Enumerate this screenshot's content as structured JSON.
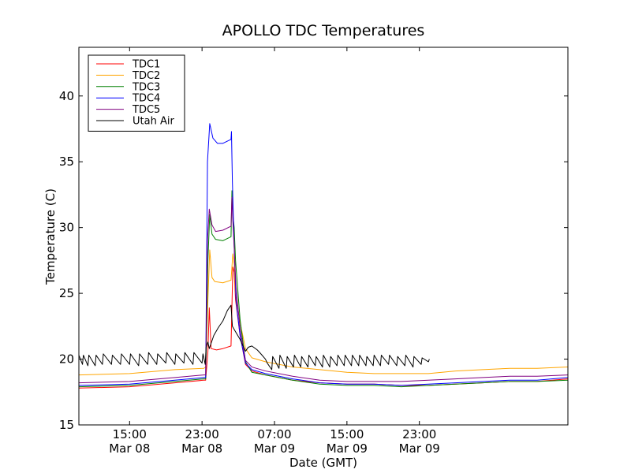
{
  "chart_data": {
    "type": "line",
    "title": "APOLLO TDC Temperatures",
    "xlabel": "Date (GMT)",
    "ylabel": "Temperature (C)",
    "x_unit": "hours since Mar 08 00:00 GMT",
    "xlim": [
      9.4,
      63.4
    ],
    "ylim": [
      15,
      43.7
    ],
    "yticks": [
      15,
      20,
      25,
      30,
      35,
      40
    ],
    "xticks": [
      {
        "x": 15,
        "time": "15:00",
        "date": "Mar 08"
      },
      {
        "x": 23,
        "time": "23:00",
        "date": "Mar 08"
      },
      {
        "x": 31,
        "time": "07:00",
        "date": "Mar 09"
      },
      {
        "x": 39,
        "time": "15:00",
        "date": "Mar 09"
      },
      {
        "x": 47,
        "time": "23:00",
        "date": "Mar 09"
      }
    ],
    "legend_position": "top-left",
    "series": [
      {
        "name": "TDC1",
        "color": "#ff0000",
        "x": [
          9.4,
          15,
          20,
          23.2,
          23.4,
          23.65,
          23.8,
          24,
          24.6,
          25.3,
          26.2,
          26.4,
          26.55,
          26.7,
          27.2,
          27.8,
          28.5,
          30,
          33,
          36,
          39,
          42,
          45,
          48,
          51,
          54,
          57,
          60,
          63.4
        ],
        "y": [
          17.8,
          17.9,
          18.2,
          18.4,
          18.4,
          20.6,
          23.9,
          20.8,
          20.7,
          20.8,
          21.0,
          27.0,
          26.6,
          24.5,
          21.8,
          19.6,
          19.1,
          18.8,
          18.4,
          18.2,
          18.1,
          18.1,
          18.0,
          18.0,
          18.1,
          18.2,
          18.3,
          18.3,
          18.5
        ]
      },
      {
        "name": "TDC2",
        "color": "#ffa500",
        "x": [
          9.4,
          15,
          20,
          23.2,
          23.4,
          23.65,
          23.85,
          24.1,
          24.4,
          25.3,
          26.2,
          26.4,
          26.55,
          26.7,
          27.2,
          27.8,
          28.5,
          30,
          33,
          36,
          39,
          42,
          45,
          48,
          51,
          54,
          57,
          60,
          63.4
        ],
        "y": [
          18.8,
          18.9,
          19.2,
          19.3,
          19.4,
          24.5,
          28.3,
          26.2,
          25.9,
          25.8,
          26.0,
          28.0,
          27.2,
          25.0,
          22.8,
          20.8,
          20.1,
          19.8,
          19.4,
          19.2,
          19.0,
          18.9,
          18.9,
          18.9,
          19.1,
          19.2,
          19.3,
          19.3,
          19.4
        ]
      },
      {
        "name": "TDC3",
        "color": "#008000",
        "x": [
          9.4,
          15,
          20,
          23.2,
          23.4,
          23.65,
          23.85,
          24.1,
          24.5,
          25.3,
          26.2,
          26.3,
          26.4,
          26.55,
          26.7,
          27.2,
          27.8,
          28.5,
          30,
          33,
          36,
          39,
          42,
          45,
          48,
          51,
          54,
          57,
          60,
          63.4
        ],
        "y": [
          17.9,
          18.0,
          18.3,
          18.5,
          18.5,
          27.5,
          31.0,
          29.5,
          29.1,
          29.0,
          29.3,
          32.8,
          31.0,
          30.0,
          27.5,
          23.0,
          19.8,
          19.0,
          18.8,
          18.4,
          18.1,
          18.0,
          18.0,
          17.9,
          18.0,
          18.1,
          18.2,
          18.3,
          18.3,
          18.4
        ]
      },
      {
        "name": "TDC4",
        "color": "#0000ff",
        "x": [
          9.4,
          15,
          20,
          23.2,
          23.4,
          23.6,
          23.85,
          24.2,
          24.7,
          25.3,
          26.2,
          26.25,
          26.35,
          26.55,
          26.75,
          27.2,
          27.8,
          28.5,
          30,
          33,
          36,
          39,
          42,
          45,
          48,
          51,
          54,
          57,
          60,
          63.4
        ],
        "y": [
          18.0,
          18.1,
          18.4,
          18.6,
          18.6,
          35.0,
          37.9,
          36.8,
          36.4,
          36.4,
          36.7,
          37.3,
          33.5,
          28.5,
          24.5,
          21.8,
          19.7,
          19.2,
          18.9,
          18.5,
          18.2,
          18.1,
          18.1,
          18.0,
          18.1,
          18.2,
          18.3,
          18.4,
          18.4,
          18.6
        ]
      },
      {
        "name": "TDC5",
        "color": "#800080",
        "x": [
          9.4,
          15,
          20,
          23.2,
          23.4,
          23.6,
          23.8,
          24.1,
          24.5,
          25.3,
          26.2,
          26.3,
          26.4,
          26.55,
          26.75,
          27.2,
          27.8,
          28.5,
          30,
          33,
          36,
          39,
          42,
          45,
          48,
          51,
          54,
          57,
          60,
          63.4
        ],
        "y": [
          18.2,
          18.3,
          18.6,
          18.8,
          18.8,
          29.0,
          31.4,
          30.2,
          29.7,
          29.8,
          30.1,
          32.3,
          30.5,
          28.5,
          25.5,
          22.3,
          19.9,
          19.4,
          19.1,
          18.7,
          18.4,
          18.3,
          18.3,
          18.3,
          18.4,
          18.5,
          18.6,
          18.7,
          18.7,
          18.8
        ]
      },
      {
        "name": "Utah Air",
        "color": "#000000",
        "x": [
          9.4,
          9.8,
          9.9,
          10.4,
          10.5,
          11.2,
          11.3,
          12.0,
          12.1,
          13.0,
          13.1,
          14.0,
          14.1,
          15.0,
          15.1,
          16.0,
          16.1,
          17.0,
          17.1,
          18.0,
          18.1,
          19.0,
          19.1,
          20.0,
          20.1,
          21.0,
          21.1,
          22.0,
          22.1,
          23.0,
          23.1,
          23.35,
          23.45,
          23.65,
          23.8,
          24.0,
          24.3,
          24.8,
          25.3,
          25.8,
          26.2,
          26.35,
          26.6,
          27.2,
          27.8,
          28.1,
          28.5,
          29.1,
          29.5,
          30.0,
          30.2,
          30.7,
          30.8,
          31.5,
          31.6,
          32.3,
          32.4,
          33.1,
          33.2,
          33.9,
          34.0,
          34.7,
          34.8,
          35.5,
          35.6,
          36.3,
          36.4,
          37.1,
          37.2,
          37.9,
          38.0,
          38.7,
          38.8,
          39.5,
          39.6,
          40.3,
          40.4,
          41.1,
          41.2,
          41.9,
          42.0,
          42.7,
          42.8,
          43.6,
          43.7,
          44.5,
          44.6,
          45.4,
          45.5,
          46.3,
          46.4,
          47.2,
          47.3,
          48.0,
          48.1
        ],
        "y": [
          20.3,
          19.6,
          20.3,
          19.5,
          20.3,
          19.5,
          20.3,
          19.6,
          20.4,
          19.6,
          20.3,
          19.6,
          20.4,
          19.6,
          20.4,
          19.5,
          20.4,
          19.6,
          20.5,
          19.6,
          20.4,
          19.7,
          20.5,
          19.6,
          20.4,
          19.7,
          20.5,
          19.6,
          20.5,
          19.7,
          20.4,
          19.6,
          20.9,
          21.3,
          20.8,
          21.2,
          21.8,
          22.4,
          22.9,
          23.7,
          24.1,
          22.5,
          22.2,
          21.5,
          20.6,
          20.9,
          21.0,
          20.7,
          20.4,
          20.0,
          19.7,
          19.2,
          20.2,
          19.3,
          20.3,
          19.3,
          20.2,
          19.4,
          20.3,
          19.4,
          20.2,
          19.4,
          20.3,
          19.5,
          20.2,
          19.4,
          20.3,
          19.4,
          20.2,
          19.5,
          20.3,
          19.5,
          20.3,
          19.5,
          20.3,
          19.5,
          20.3,
          19.5,
          20.2,
          19.5,
          20.3,
          19.5,
          20.3,
          19.6,
          20.3,
          19.5,
          20.2,
          19.5,
          20.3,
          19.4,
          20.2,
          19.6,
          20.1,
          19.8,
          20.0
        ]
      }
    ]
  }
}
